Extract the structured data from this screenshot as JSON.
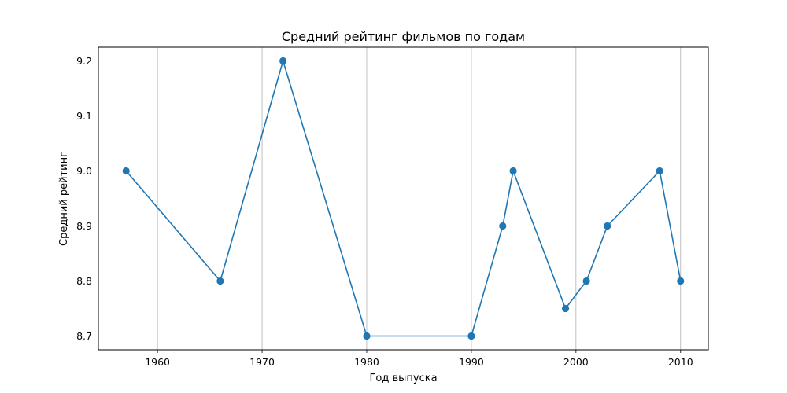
{
  "chart_data": {
    "type": "line",
    "title": "Средний рейтинг фильмов по годам",
    "xlabel": "Год выпуска",
    "ylabel": "Средний рейтинг",
    "xlim": [
      1954.35,
      2012.65
    ],
    "ylim": [
      8.675,
      9.225
    ],
    "xticks": [
      1960,
      1970,
      1980,
      1990,
      2000,
      2010
    ],
    "yticks": [
      8.7,
      8.8,
      8.9,
      9.0,
      9.1,
      9.2
    ],
    "grid": true,
    "marker": "circle",
    "series": [
      {
        "color": "#1f77b4",
        "x": [
          1957,
          1966,
          1972,
          1980,
          1990,
          1993,
          1994,
          1999,
          2001,
          2003,
          2008,
          2010
        ],
        "y": [
          9.0,
          8.8,
          9.2,
          8.7,
          8.7,
          8.9,
          9.0,
          8.75,
          8.8,
          8.9,
          9.0,
          8.8
        ]
      }
    ]
  }
}
